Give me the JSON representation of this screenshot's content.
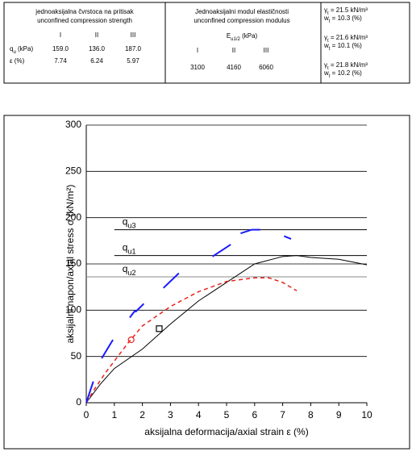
{
  "table": {
    "col1": {
      "title": [
        "jednoaksijalna čvrstoca na pritisak",
        "unconfined compression strength"
      ],
      "headers": [
        "I",
        "II",
        "III"
      ],
      "rows": [
        {
          "label": "q",
          "label_sub": "u",
          "label_rest": " (kPa)",
          "cells": [
            "159.0",
            "136.0",
            "187.0"
          ]
        },
        {
          "label": "ε",
          "label_sub": "",
          "label_rest": " (%)",
          "cells": [
            "7.74",
            "6.24",
            "5.97"
          ]
        }
      ]
    },
    "col2": {
      "title": [
        "Jednoaksijalni modul elastičnosti",
        "unconfined compression modulus"
      ],
      "unit": {
        "sym": "E",
        "sub": "u1/2",
        "rest": "  (kPa)"
      },
      "headers": [
        "I",
        "II",
        "III"
      ],
      "cells": [
        "3100",
        "4160",
        "6060"
      ]
    },
    "col3": [
      {
        "g": "γ",
        "gsub": "t",
        "grest": " = 21.5 kN/m³",
        "w": "w",
        "wsub": "t",
        "wrest": " = 10.3 (%)"
      },
      {
        "g": "γ",
        "gsub": "t",
        "grest": " = 21.6 kN/m³",
        "w": "w",
        "wsub": "t",
        "wrest": " = 10.1 (%)"
      },
      {
        "g": "γ",
        "gsub": "t",
        "grest": " = 21.8 kN/m³",
        "w": "w",
        "wsub": "t",
        "wrest": " = 10.2 (%)"
      }
    ]
  },
  "chart_data": {
    "type": "line",
    "xlabel": "aksijalna deformacija/axial strain  ε  (%)",
    "ylabel": "aksijalni napon/axial stress  σ  (kN/m²)",
    "xlim": [
      0,
      10
    ],
    "xticks": [
      0,
      1,
      2,
      3,
      4,
      5,
      6,
      7,
      8,
      9,
      10
    ],
    "ylim": [
      0,
      300
    ],
    "yticks": [
      0,
      50,
      100,
      150,
      200,
      250,
      300
    ],
    "grid": true,
    "series": [
      {
        "color": "#000000",
        "dash": false,
        "width": 1,
        "x": [
          0,
          0.5,
          1,
          2,
          3,
          4,
          5,
          6,
          7,
          7.5,
          8,
          9,
          10
        ],
        "values": [
          0,
          20,
          37,
          58,
          85,
          110,
          130,
          150,
          158,
          159,
          157,
          155,
          149
        ]
      },
      {
        "color": "#e8221c",
        "dash": true,
        "width": 1.5,
        "x": [
          0,
          0.3,
          0.7,
          1,
          1.5,
          2,
          3,
          4,
          5,
          6,
          6.5,
          7,
          7.5
        ],
        "values": [
          0,
          15,
          33,
          45,
          65,
          83,
          104,
          120,
          131,
          135,
          135,
          130,
          121
        ]
      },
      {
        "color": "#1a1aff",
        "dash": false,
        "width": 2,
        "x": [
          0,
          0.25,
          null,
          0.55,
          0.95,
          null,
          1.55,
          1.75,
          null,
          1.75,
          2.05,
          null,
          2.75,
          3.3,
          null,
          4.5,
          5.15,
          null,
          5.5,
          5.9,
          6.2,
          null,
          7.05,
          7.3
        ],
        "values": [
          0,
          23,
          null,
          48,
          68,
          null,
          92,
          100,
          null,
          98,
          107,
          null,
          124,
          140,
          null,
          158,
          171,
          null,
          183,
          187,
          187,
          null,
          180,
          177
        ]
      },
      {
        "color": "#e8221c",
        "marker": "circle",
        "x": [
          1.6
        ],
        "values": [
          68
        ]
      },
      {
        "color": "#000000",
        "marker": "square",
        "x": [
          2.6
        ],
        "values": [
          80
        ]
      }
    ],
    "reference_lines": [
      {
        "label": "q",
        "label_sub": "u3",
        "value": 187,
        "x_start": 1,
        "color": "#000000"
      },
      {
        "label": "q",
        "label_sub": "u1",
        "value": 159,
        "x_start": 1,
        "color": "#000000"
      },
      {
        "label": "q",
        "label_sub": "u2",
        "value": 136,
        "x_start": 0,
        "color": "#888888"
      }
    ]
  }
}
